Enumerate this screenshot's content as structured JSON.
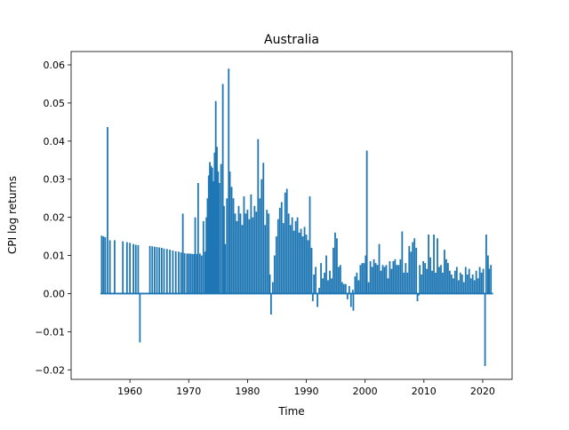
{
  "chart_data": {
    "type": "line",
    "title": "Australia",
    "xlabel": "Time",
    "ylabel": "CPI log returns",
    "xlim": [
      1950,
      2025
    ],
    "ylim": [
      -0.0225,
      0.0635
    ],
    "x_ticks": [
      1960,
      1970,
      1980,
      1990,
      2000,
      2010,
      2020
    ],
    "y_ticks": [
      -0.02,
      -0.01,
      0.0,
      0.01,
      0.02,
      0.03,
      0.04,
      0.05,
      0.06
    ],
    "y_tick_labels": [
      "−0.02",
      "−0.01",
      "0.00",
      "0.01",
      "0.02",
      "0.03",
      "0.04",
      "0.05",
      "0.06"
    ],
    "x_tick_labels": [
      "1960",
      "1970",
      "1980",
      "1990",
      "2000",
      "2010",
      "2020"
    ],
    "grid": false,
    "line_color": "#1f77b4",
    "series": [
      {
        "x_start": 1955.0,
        "x_end": 2021.75,
        "base": 0.0,
        "spikes": [
          [
            1955.2,
            0.0152
          ],
          [
            1955.5,
            0.015
          ],
          [
            1955.8,
            0.0148
          ],
          [
            1956.2,
            0.0437
          ],
          [
            1956.6,
            0.014
          ],
          [
            1957.4,
            0.014
          ],
          [
            1958.8,
            0.0137
          ],
          [
            1959.5,
            0.0135
          ],
          [
            1960.0,
            0.0133
          ],
          [
            1960.6,
            0.013
          ],
          [
            1961.0,
            0.0128
          ],
          [
            1961.4,
            0.0127
          ],
          [
            1961.7,
            -0.0128
          ],
          [
            1963.4,
            0.0125
          ],
          [
            1963.8,
            0.0124
          ],
          [
            1964.2,
            0.0123
          ],
          [
            1964.6,
            0.0122
          ],
          [
            1965.0,
            0.0121
          ],
          [
            1965.4,
            0.012
          ],
          [
            1965.8,
            0.0118
          ],
          [
            1966.3,
            0.0117
          ],
          [
            1966.8,
            0.0115
          ],
          [
            1967.3,
            0.0113
          ],
          [
            1967.8,
            0.0111
          ],
          [
            1968.3,
            0.011
          ],
          [
            1968.7,
            0.0108
          ],
          [
            1969.0,
            0.021
          ],
          [
            1969.3,
            0.0106
          ],
          [
            1969.7,
            0.0105
          ],
          [
            1970.0,
            0.0105
          ],
          [
            1970.3,
            0.0105
          ],
          [
            1970.6,
            0.0104
          ],
          [
            1970.9,
            0.0104
          ],
          [
            1971.1,
            0.02
          ],
          [
            1971.4,
            0.0104
          ],
          [
            1971.6,
            0.029
          ],
          [
            1971.9,
            0.0105
          ],
          [
            1972.2,
            0.01
          ],
          [
            1972.5,
            0.019
          ],
          [
            1972.8,
            0.011
          ],
          [
            1973.0,
            0.02
          ],
          [
            1973.2,
            0.025
          ],
          [
            1973.4,
            0.031
          ],
          [
            1973.6,
            0.0345
          ],
          [
            1973.8,
            0.0335
          ],
          [
            1974.0,
            0.033
          ],
          [
            1974.2,
            0.0295
          ],
          [
            1974.4,
            0.037
          ],
          [
            1974.6,
            0.0505
          ],
          [
            1974.8,
            0.0385
          ],
          [
            1975.0,
            0.032
          ],
          [
            1975.2,
            0.029
          ],
          [
            1975.5,
            0.034
          ],
          [
            1975.8,
            0.055
          ],
          [
            1976.0,
            0.023
          ],
          [
            1976.2,
            0.013
          ],
          [
            1976.5,
            0.025
          ],
          [
            1976.8,
            0.059
          ],
          [
            1977.0,
            0.032
          ],
          [
            1977.3,
            0.028
          ],
          [
            1977.6,
            0.025
          ],
          [
            1977.9,
            0.021
          ],
          [
            1978.2,
            0.019
          ],
          [
            1978.5,
            0.023
          ],
          [
            1978.8,
            0.021
          ],
          [
            1979.1,
            0.018
          ],
          [
            1979.4,
            0.0255
          ],
          [
            1979.7,
            0.021
          ],
          [
            1980.0,
            0.022
          ],
          [
            1980.3,
            0.0195
          ],
          [
            1980.6,
            0.026
          ],
          [
            1980.9,
            0.02
          ],
          [
            1981.2,
            0.023
          ],
          [
            1981.5,
            0.0215
          ],
          [
            1981.8,
            0.0405
          ],
          [
            1982.1,
            0.025
          ],
          [
            1982.4,
            0.03
          ],
          [
            1982.7,
            0.0343
          ],
          [
            1983.0,
            0.018
          ],
          [
            1983.3,
            0.022
          ],
          [
            1983.6,
            0.021
          ],
          [
            1983.8,
            0.005
          ],
          [
            1984.0,
            -0.0055
          ],
          [
            1984.3,
            0.003
          ],
          [
            1984.6,
            0.01
          ],
          [
            1984.9,
            0.015
          ],
          [
            1985.2,
            0.0195
          ],
          [
            1985.5,
            0.0225
          ],
          [
            1985.8,
            0.024
          ],
          [
            1986.1,
            0.0185
          ],
          [
            1986.4,
            0.0265
          ],
          [
            1986.7,
            0.0275
          ],
          [
            1987.0,
            0.021
          ],
          [
            1987.3,
            0.018
          ],
          [
            1987.6,
            0.02
          ],
          [
            1987.9,
            0.0165
          ],
          [
            1988.2,
            0.019
          ],
          [
            1988.5,
            0.02
          ],
          [
            1988.8,
            0.016
          ],
          [
            1989.1,
            0.017
          ],
          [
            1989.4,
            0.015
          ],
          [
            1989.7,
            0.0175
          ],
          [
            1990.0,
            0.0155
          ],
          [
            1990.3,
            0.014
          ],
          [
            1990.6,
            0.0255
          ],
          [
            1990.9,
            0.012
          ],
          [
            1991.1,
            -0.002
          ],
          [
            1991.3,
            0.005
          ],
          [
            1991.6,
            0.007
          ],
          [
            1991.9,
            -0.0035
          ],
          [
            1992.2,
            0.0015
          ],
          [
            1992.5,
            0.008
          ],
          [
            1992.8,
            0.004
          ],
          [
            1993.1,
            0.0055
          ],
          [
            1993.4,
            0.01
          ],
          [
            1993.7,
            0.0035
          ],
          [
            1994.0,
            0.006
          ],
          [
            1994.3,
            0.004
          ],
          [
            1994.6,
            0.012
          ],
          [
            1994.9,
            0.016
          ],
          [
            1995.2,
            0.0145
          ],
          [
            1995.5,
            0.007
          ],
          [
            1995.8,
            0.0075
          ],
          [
            1996.1,
            0.003
          ],
          [
            1996.4,
            0.0025
          ],
          [
            1996.7,
            0.0025
          ],
          [
            1997.0,
            -0.0015
          ],
          [
            1997.3,
            0.002
          ],
          [
            1997.6,
            -0.0035
          ],
          [
            1997.9,
            0.001
          ],
          [
            1998.0,
            -0.0045
          ],
          [
            1998.3,
            0.0045
          ],
          [
            1998.6,
            0.0055
          ],
          [
            1998.9,
            0.0035
          ],
          [
            1999.2,
            0.0075
          ],
          [
            1999.5,
            0.008
          ],
          [
            1999.8,
            0.008
          ],
          [
            2000.1,
            0.01
          ],
          [
            2000.3,
            0.0375
          ],
          [
            2000.6,
            0.003
          ],
          [
            2000.9,
            0.0085
          ],
          [
            2001.2,
            0.007
          ],
          [
            2001.5,
            0.009
          ],
          [
            2001.8,
            0.008
          ],
          [
            2002.1,
            0.0075
          ],
          [
            2002.4,
            0.013
          ],
          [
            2002.7,
            0.006
          ],
          [
            2003.0,
            0.0075
          ],
          [
            2003.3,
            0.007
          ],
          [
            2003.6,
            0.0075
          ],
          [
            2003.9,
            0.004
          ],
          [
            2004.2,
            0.0085
          ],
          [
            2004.5,
            0.0065
          ],
          [
            2004.8,
            0.0085
          ],
          [
            2005.1,
            0.009
          ],
          [
            2005.4,
            0.0075
          ],
          [
            2005.7,
            0.0075
          ],
          [
            2006.0,
            0.009
          ],
          [
            2006.3,
            0.0163
          ],
          [
            2006.6,
            0.0055
          ],
          [
            2006.9,
            0.008
          ],
          [
            2007.2,
            0.0055
          ],
          [
            2007.5,
            0.0125
          ],
          [
            2007.8,
            0.011
          ],
          [
            2008.1,
            0.0135
          ],
          [
            2008.4,
            0.0145
          ],
          [
            2008.7,
            0.012
          ],
          [
            2008.9,
            -0.002
          ],
          [
            2009.1,
            -0.0005
          ],
          [
            2009.3,
            0.0075
          ],
          [
            2009.6,
            0.005
          ],
          [
            2009.9,
            0.0085
          ],
          [
            2010.2,
            0.008
          ],
          [
            2010.5,
            0.0065
          ],
          [
            2010.8,
            0.0155
          ],
          [
            2011.1,
            0.0095
          ],
          [
            2011.4,
            0.006
          ],
          [
            2011.7,
            0.0155
          ],
          [
            2012.0,
            0.0055
          ],
          [
            2012.3,
            0.0145
          ],
          [
            2012.6,
            0.007
          ],
          [
            2012.9,
            0.0075
          ],
          [
            2013.2,
            0.0055
          ],
          [
            2013.5,
            0.0115
          ],
          [
            2013.8,
            0.009
          ],
          [
            2014.1,
            0.008
          ],
          [
            2014.4,
            0.006
          ],
          [
            2014.7,
            0.005
          ],
          [
            2015.0,
            0.004
          ],
          [
            2015.3,
            0.006
          ],
          [
            2015.6,
            0.007
          ],
          [
            2015.9,
            0.0035
          ],
          [
            2016.2,
            0.0055
          ],
          [
            2016.5,
            0.005
          ],
          [
            2016.8,
            0.003
          ],
          [
            2017.1,
            0.007
          ],
          [
            2017.4,
            0.005
          ],
          [
            2017.7,
            0.0065
          ],
          [
            2018.0,
            0.004
          ],
          [
            2018.3,
            0.005
          ],
          [
            2018.6,
            0.0035
          ],
          [
            2018.9,
            0.006
          ],
          [
            2019.2,
            0.004
          ],
          [
            2019.5,
            0.007
          ],
          [
            2019.8,
            0.0055
          ],
          [
            2020.1,
            0.0065
          ],
          [
            2020.4,
            -0.019
          ],
          [
            2020.6,
            0.0155
          ],
          [
            2020.9,
            0.01
          ],
          [
            2021.1,
            0.0065
          ],
          [
            2021.4,
            0.0075
          ]
        ]
      }
    ]
  }
}
